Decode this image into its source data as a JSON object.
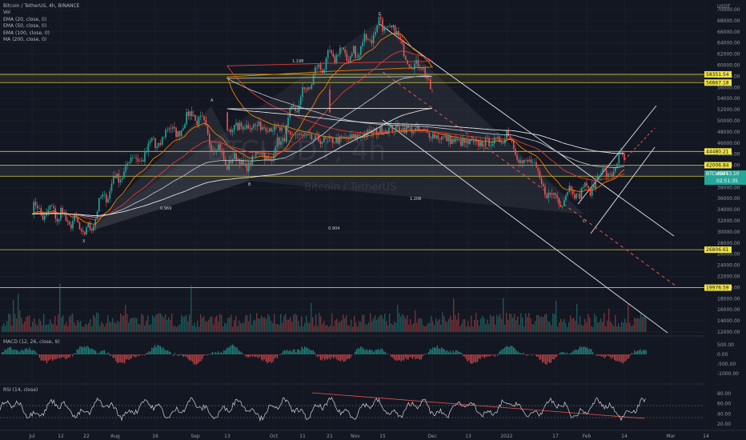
{
  "header": {
    "symbol_line": "Bitcoin / TetherUS, 4h, BINANCE",
    "indicators": [
      "Vol",
      "EMA (20, close, 0)",
      "EMA (50, close, 0)",
      "EMA (100, close, 0)",
      "MA (200, close, 0)"
    ]
  },
  "watermark": {
    "ticker": "BTCUSDT, 4h",
    "name": "Bitcoin / TetherUS"
  },
  "panels": {
    "macd": "MACD (12, 26, close, 9)",
    "rsi": "RSI (14, close)"
  },
  "currency": "USDT",
  "colors": {
    "bg": "#131722",
    "up": "#26a69a",
    "down": "#ef5350",
    "level_line": "#d4c94a",
    "level_fill": "#f0e442",
    "price_badge": "#26a69a",
    "ema20": "#f57c00",
    "ema50": "#e53935",
    "ema100": "#b0bec5",
    "ma200": "#e0e0e0"
  },
  "chart_data": [
    {
      "type": "line",
      "title": "Bitcoin / TetherUS, 4h, BINANCE",
      "x_tick_labels": [
        "Jul",
        "12",
        "22",
        "Aug",
        "16",
        "Sep",
        "13",
        "Oct",
        "11",
        "21",
        "Nov",
        "15",
        "Dec",
        "13",
        "2022",
        "17",
        "Feb",
        "14",
        "Mar",
        "14"
      ],
      "y_tick_labels": [
        "70000.00",
        "68000.00",
        "66000.00",
        "64000.00",
        "62000.00",
        "60000.00",
        "58000.00",
        "56000.00",
        "54000.00",
        "52000.00",
        "50000.00",
        "48000.00",
        "46000.00",
        "44000.00",
        "42000.00",
        "40000.00",
        "38000.00",
        "36000.00",
        "34000.00",
        "32000.00",
        "30000.00",
        "28000.00",
        "26000.00",
        "24000.00",
        "22000.00",
        "20000.00",
        "18000.00",
        "16000.00",
        "14000.00",
        "12000.00"
      ],
      "ylim": [
        12000,
        70000
      ],
      "price_path": [
        [
          "Jul",
          34000
        ],
        [
          "12",
          33000
        ],
        [
          "22",
          30000
        ],
        [
          "Aug",
          40000
        ],
        [
          "16",
          46000
        ],
        [
          "Sep",
          51000
        ],
        [
          "13",
          42000
        ],
        [
          "Oct",
          44000
        ],
        [
          "11",
          55000
        ],
        [
          "21",
          62000
        ],
        [
          "Nov",
          62000
        ],
        [
          "15",
          68000
        ],
        [
          "Dec",
          56000
        ],
        [
          "13",
          48000
        ],
        [
          "2022",
          47000
        ],
        [
          "17",
          36000
        ],
        [
          "Feb",
          38000
        ],
        [
          "14",
          43000
        ]
      ],
      "horizontal_levels": [
        "58351.54",
        "56867.18",
        "44480.21",
        "42006.84",
        "40028.80",
        "26806.61",
        "19976.59"
      ],
      "last_price": {
        "symbol": "BTCUSDT",
        "price": "40453.10",
        "time_left": "02:51:35"
      },
      "pattern_points": [
        "X",
        "A",
        "B",
        "C",
        "D",
        "X",
        "A",
        "B",
        "C",
        "D"
      ],
      "pattern_ratios": [
        "0.969",
        "1.198",
        "1.208",
        "0.904"
      ],
      "legend": [
        "Vol",
        "EMA (20, close, 0)",
        "EMA (50, close, 0)",
        "EMA (100, close, 0)",
        "MA (200, close, 0)"
      ]
    },
    {
      "type": "bar",
      "title": "MACD (12, 26, close, 9)",
      "y_tick_labels": [
        "500.00",
        "0.00",
        "-500.00",
        "-1000.00"
      ]
    },
    {
      "type": "line",
      "title": "RSI (14, close)",
      "y_tick_labels": [
        "80.00",
        "60.00",
        "40.00",
        "20.00"
      ],
      "ylim": [
        20,
        80
      ]
    }
  ]
}
